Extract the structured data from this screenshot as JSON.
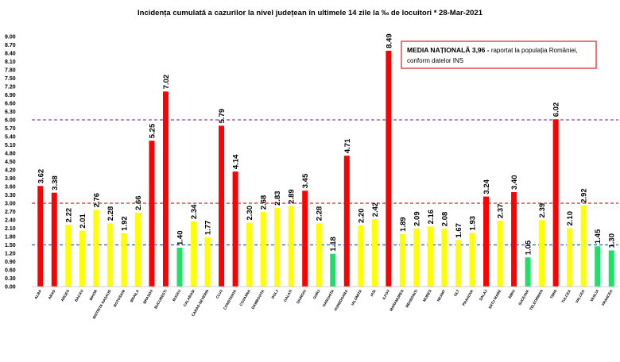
{
  "chart_data": {
    "type": "bar",
    "title": "Incidența cumulată a cazurilor la nivel județean în ultimele 14 zile la ‰ de locuitori * 28-Mar-2021",
    "categories": [
      "ALBA",
      "ARAD",
      "ARGES",
      "BACAU",
      "BIHOR",
      "BISTRITA NASAUD",
      "BOTOSANI",
      "BRAILA",
      "BRASOV",
      "BUCURESTI",
      "BUZAU",
      "CALARASI",
      "CARAS-SEVERIN",
      "CLUJ",
      "CONSTANTA",
      "COVASNA",
      "DAMBOVITA",
      "DOLJ",
      "GALATI",
      "GIURGIU",
      "GORJ",
      "HARGHITA",
      "HUNEDOARA",
      "IALOMITA",
      "IASI",
      "ILFOV",
      "MARAMURES",
      "MEHEDINTI",
      "MURES",
      "NEAMT",
      "OLT",
      "PRAHOVA",
      "SALAJ",
      "SATU MARE",
      "SIBIU",
      "SUCEAVA",
      "TELEORMAN",
      "TIMIS",
      "TULCEA",
      "VALCEA",
      "VASLUI",
      "VRANCEA"
    ],
    "values": [
      3.62,
      3.38,
      2.22,
      2.01,
      2.76,
      2.28,
      1.92,
      2.66,
      5.25,
      7.02,
      1.4,
      2.34,
      1.77,
      5.79,
      4.14,
      2.3,
      2.68,
      2.83,
      2.89,
      3.45,
      2.28,
      1.18,
      4.71,
      2.2,
      2.42,
      8.49,
      1.89,
      2.09,
      2.16,
      2.08,
      1.67,
      1.93,
      3.24,
      2.37,
      3.4,
      1.05,
      2.39,
      6.02,
      2.1,
      2.92,
      1.45,
      1.3
    ],
    "value_labels": [
      "3.62",
      "3.38",
      "2.22",
      "2.01",
      "2.76",
      "2.28",
      "1.92",
      "2.66",
      "5.25",
      "7.02",
      "1.40",
      "2.34",
      "1.77",
      "5.79",
      "4.14",
      "2.30",
      "2.68",
      "2.83",
      "2.89",
      "3.45",
      "2.28",
      "1.18",
      "4.71",
      "2.20",
      "2.42",
      "8.49",
      "1.89",
      "2.09",
      "2.16",
      "2.08",
      "1.67",
      "1.93",
      "3.24",
      "2.37",
      "3.40",
      "1.05",
      "2.39",
      "6.02",
      "2.10",
      "2.92",
      "1.45",
      "1.30"
    ],
    "ylim": [
      0,
      9.0
    ],
    "ytick_step": 0.3,
    "ytick_labels": [
      "0.00",
      "0.30",
      "0.60",
      "0.90",
      "1.20",
      "1.50",
      "1.80",
      "2.10",
      "2.40",
      "2.70",
      "3.00",
      "3.30",
      "3.60",
      "3.90",
      "4.20",
      "4.50",
      "4.80",
      "5.10",
      "5.40",
      "5.70",
      "6.00",
      "6.30",
      "6.60",
      "6.90",
      "7.20",
      "7.50",
      "7.80",
      "8.10",
      "8.40",
      "8.70",
      "9.00"
    ],
    "grid": false,
    "xlabel": "",
    "ylabel": "",
    "reference_lines": [
      {
        "value": 1.5,
        "color": "#1f5fc8",
        "style": "dashed"
      },
      {
        "value": 3.0,
        "color": "#e02020",
        "style": "dashed"
      },
      {
        "value": 6.0,
        "color": "#8e44ad",
        "style": "dashed"
      }
    ],
    "colors": {
      "red": "#ff0000",
      "yellow": "#ffff00",
      "green": "#22dd6a"
    },
    "thresholds": {
      "low": 1.5,
      "high": 3.0
    },
    "annotation": {
      "bold_text": "MEDIA NAȚIONALĂ  3,96 -",
      "text_line1": " raportat la populația României,",
      "text_line2": "conform datelor INS",
      "border_color": "#e02020",
      "position": "top-right"
    }
  }
}
